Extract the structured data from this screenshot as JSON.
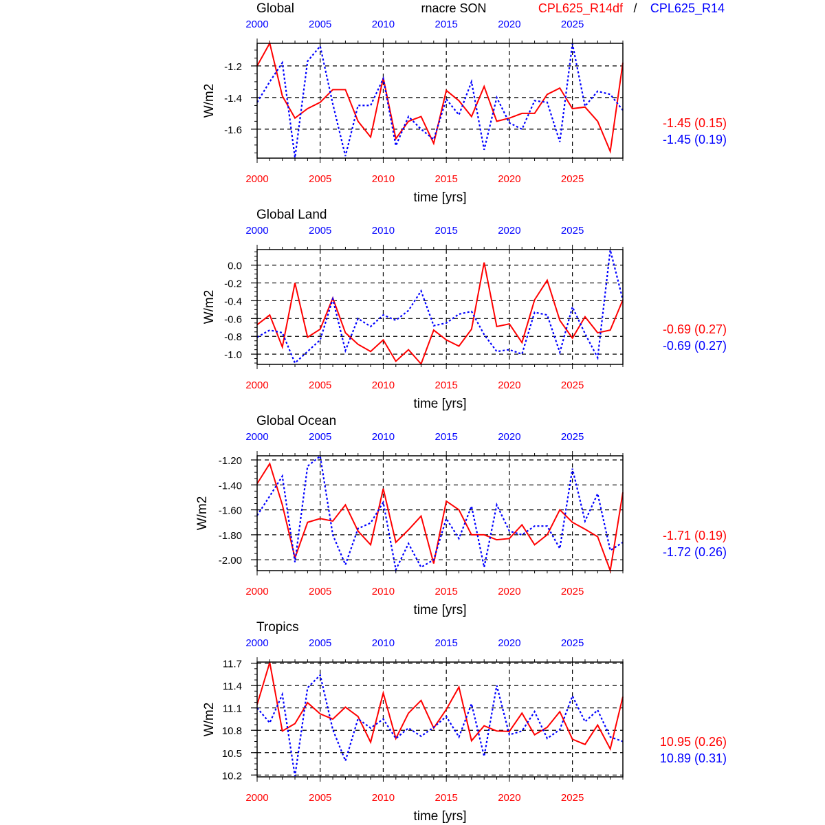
{
  "header": {
    "variable": "rnacre SON",
    "series_a_label": "CPL625_R14df",
    "separator": "/",
    "series_b_label": "CPL625_R14"
  },
  "colors": {
    "series_a": "#ff0000",
    "series_b": "#0000ff",
    "grid": "#000000"
  },
  "chart_data": [
    {
      "type": "line",
      "title": "Global",
      "xlabel": "time [yrs]",
      "ylabel": "W/m2",
      "xlim": [
        2000,
        2029
      ],
      "ylim": [
        -1.783,
        -1.057
      ],
      "x_ticks": [
        2000,
        2005,
        2010,
        2015,
        2020,
        2025
      ],
      "x_tick_labels": [
        "2000",
        "2005",
        "2010",
        "2015",
        "2020",
        "2025"
      ],
      "y_ticks": [
        -1.6,
        -1.4,
        -1.2
      ],
      "y_tick_labels": [
        "-1.6",
        "-1.4",
        "-1.2"
      ],
      "grid": true,
      "stats": [
        "-1.45 (0.15)",
        "-1.45 (0.19)"
      ],
      "series": [
        {
          "name": "CPL625_R14df",
          "values": [
            -1.2,
            -1.056,
            -1.39,
            -1.53,
            -1.47,
            -1.43,
            -1.35,
            -1.35,
            -1.55,
            -1.65,
            -1.275,
            -1.66,
            -1.55,
            -1.52,
            -1.69,
            -1.355,
            -1.42,
            -1.52,
            -1.33,
            -1.55,
            -1.53,
            -1.5,
            -1.5,
            -1.38,
            -1.34,
            -1.47,
            -1.46,
            -1.55,
            -1.74,
            -1.18
          ]
        },
        {
          "name": "CPL625_R14",
          "values": [
            -1.43,
            -1.3,
            -1.18,
            -1.78,
            -1.17,
            -1.075,
            -1.44,
            -1.77,
            -1.45,
            -1.45,
            -1.28,
            -1.705,
            -1.52,
            -1.6,
            -1.665,
            -1.41,
            -1.51,
            -1.3,
            -1.73,
            -1.4,
            -1.56,
            -1.6,
            -1.42,
            -1.43,
            -1.68,
            -1.06,
            -1.455,
            -1.36,
            -1.38,
            -1.48
          ]
        }
      ]
    },
    {
      "type": "line",
      "title": "Global Land",
      "xlabel": "time [yrs]",
      "ylabel": "W/m2",
      "xlim": [
        2000,
        2029
      ],
      "ylim": [
        -1.115,
        0.175
      ],
      "x_ticks": [
        2000,
        2005,
        2010,
        2015,
        2020,
        2025
      ],
      "x_tick_labels": [
        "2000",
        "2005",
        "2010",
        "2015",
        "2020",
        "2025"
      ],
      "y_ticks": [
        -1.0,
        -0.8,
        -0.6,
        -0.4,
        -0.2,
        0.0
      ],
      "y_tick_labels": [
        "-1.0",
        "-0.8",
        "-0.6",
        "-0.4",
        "-0.2",
        "0.0"
      ],
      "grid": true,
      "stats": [
        "-0.69 (0.27)",
        "-0.69 (0.27)"
      ],
      "series": [
        {
          "name": "CPL625_R14df",
          "values": [
            -0.67,
            -0.56,
            -0.92,
            -0.2,
            -0.81,
            -0.72,
            -0.37,
            -0.76,
            -0.89,
            -0.97,
            -0.84,
            -1.08,
            -0.95,
            -1.11,
            -0.73,
            -0.84,
            -0.91,
            -0.72,
            0.03,
            -0.69,
            -0.66,
            -0.87,
            -0.39,
            -0.17,
            -0.62,
            -0.82,
            -0.58,
            -0.76,
            -0.73,
            -0.39
          ]
        },
        {
          "name": "CPL625_R14",
          "values": [
            -0.81,
            -0.73,
            -0.76,
            -1.1,
            -0.97,
            -0.84,
            -0.38,
            -0.96,
            -0.6,
            -0.69,
            -0.56,
            -0.62,
            -0.51,
            -0.29,
            -0.68,
            -0.65,
            -0.55,
            -0.52,
            -0.78,
            -0.97,
            -0.95,
            -1.0,
            -0.53,
            -0.56,
            -0.98,
            -0.47,
            -0.77,
            -1.04,
            0.17,
            -0.39
          ]
        }
      ]
    },
    {
      "type": "line",
      "title": "Global Ocean",
      "xlabel": "time [yrs]",
      "ylabel": "W/m2",
      "xlim": [
        2000,
        2029
      ],
      "ylim": [
        -2.087,
        -1.167
      ],
      "x_ticks": [
        2000,
        2005,
        2010,
        2015,
        2020,
        2025
      ],
      "x_tick_labels": [
        "2000",
        "2005",
        "2010",
        "2015",
        "2020",
        "2025"
      ],
      "y_ticks": [
        -2.0,
        -1.8,
        -1.6,
        -1.4,
        -1.2
      ],
      "y_tick_labels": [
        "-2.00",
        "-1.80",
        "-1.60",
        "-1.40",
        "-1.20"
      ],
      "grid": true,
      "stats": [
        "-1.71 (0.19)",
        "-1.72 (0.26)"
      ],
      "series": [
        {
          "name": "CPL625_R14df",
          "values": [
            -1.39,
            -1.23,
            -1.56,
            -1.985,
            -1.7,
            -1.67,
            -1.69,
            -1.56,
            -1.77,
            -1.88,
            -1.43,
            -1.86,
            -1.76,
            -1.65,
            -2.03,
            -1.53,
            -1.6,
            -1.8,
            -1.8,
            -1.84,
            -1.83,
            -1.72,
            -1.88,
            -1.8,
            -1.6,
            -1.7,
            -1.755,
            -1.815,
            -2.087,
            -1.46
          ]
        },
        {
          "name": "CPL625_R14",
          "values": [
            -1.645,
            -1.49,
            -1.33,
            -2.02,
            -1.25,
            -1.17,
            -1.8,
            -2.04,
            -1.75,
            -1.705,
            -1.54,
            -2.08,
            -1.87,
            -2.06,
            -2.0,
            -1.67,
            -1.83,
            -1.57,
            -2.06,
            -1.56,
            -1.77,
            -1.8,
            -1.73,
            -1.73,
            -1.91,
            -1.27,
            -1.69,
            -1.47,
            -1.925,
            -1.86
          ]
        }
      ]
    },
    {
      "type": "line",
      "title": "Tropics",
      "xlabel": "time [yrs]",
      "ylabel": "W/m2",
      "xlim": [
        2000,
        2029
      ],
      "ylim": [
        10.175,
        11.715
      ],
      "x_ticks": [
        2000,
        2005,
        2010,
        2015,
        2020,
        2025
      ],
      "x_tick_labels": [
        "2000",
        "2005",
        "2010",
        "2015",
        "2020",
        "2025"
      ],
      "y_ticks": [
        10.2,
        10.5,
        10.8,
        11.1,
        11.4,
        11.7
      ],
      "y_tick_labels": [
        "10.2",
        "10.5",
        "10.8",
        "11.1",
        "11.4",
        "11.7"
      ],
      "grid": true,
      "stats": [
        "10.95 (0.26)",
        "10.89 (0.31)"
      ],
      "series": [
        {
          "name": "CPL625_R14df",
          "values": [
            11.145,
            11.71,
            10.79,
            10.89,
            11.17,
            11.02,
            10.95,
            11.11,
            10.985,
            10.64,
            11.3,
            10.69,
            11.03,
            11.2,
            10.83,
            11.08,
            11.38,
            10.66,
            10.86,
            10.79,
            10.785,
            11.03,
            10.74,
            10.84,
            11.05,
            10.68,
            10.61,
            10.87,
            10.55,
            11.25
          ]
        },
        {
          "name": "CPL625_R14",
          "values": [
            11.1,
            10.9,
            11.28,
            10.185,
            11.37,
            11.54,
            10.81,
            10.39,
            10.955,
            10.83,
            10.95,
            10.69,
            10.83,
            10.72,
            10.84,
            10.985,
            10.71,
            11.155,
            10.45,
            11.4,
            10.74,
            10.79,
            11.05,
            10.69,
            10.81,
            11.26,
            10.915,
            11.07,
            10.71,
            10.65
          ]
        }
      ]
    }
  ]
}
